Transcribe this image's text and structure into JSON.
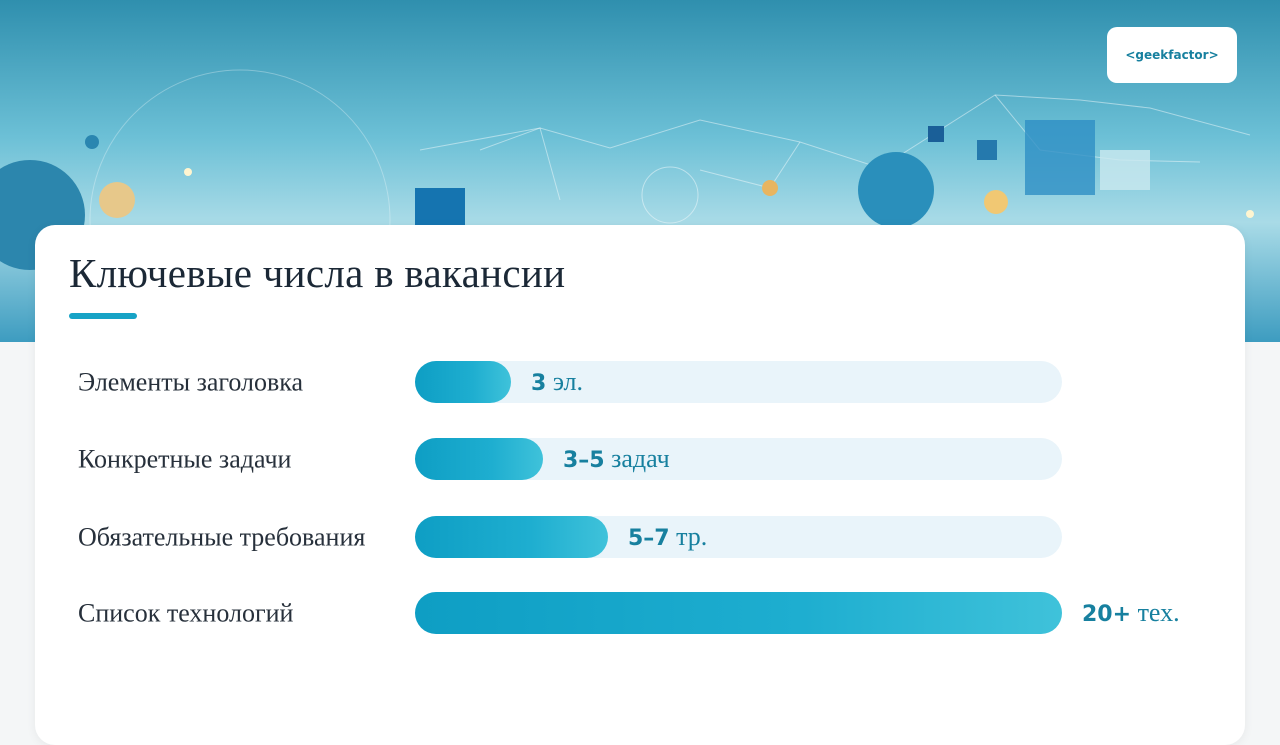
{
  "header": {
    "logo": "<geekfactor>"
  },
  "title": "Ключевые числа в вакансии",
  "rows": [
    {
      "label": "Элементы заголовка",
      "number": "3",
      "unit": "эл."
    },
    {
      "label": "Конкретные задачи",
      "number": "3–5",
      "unit": "задач"
    },
    {
      "label": "Обязательные требования",
      "number": "5–7",
      "unit": "тр."
    },
    {
      "label": "Список технологий",
      "number": "20+",
      "unit": "тех."
    }
  ]
}
